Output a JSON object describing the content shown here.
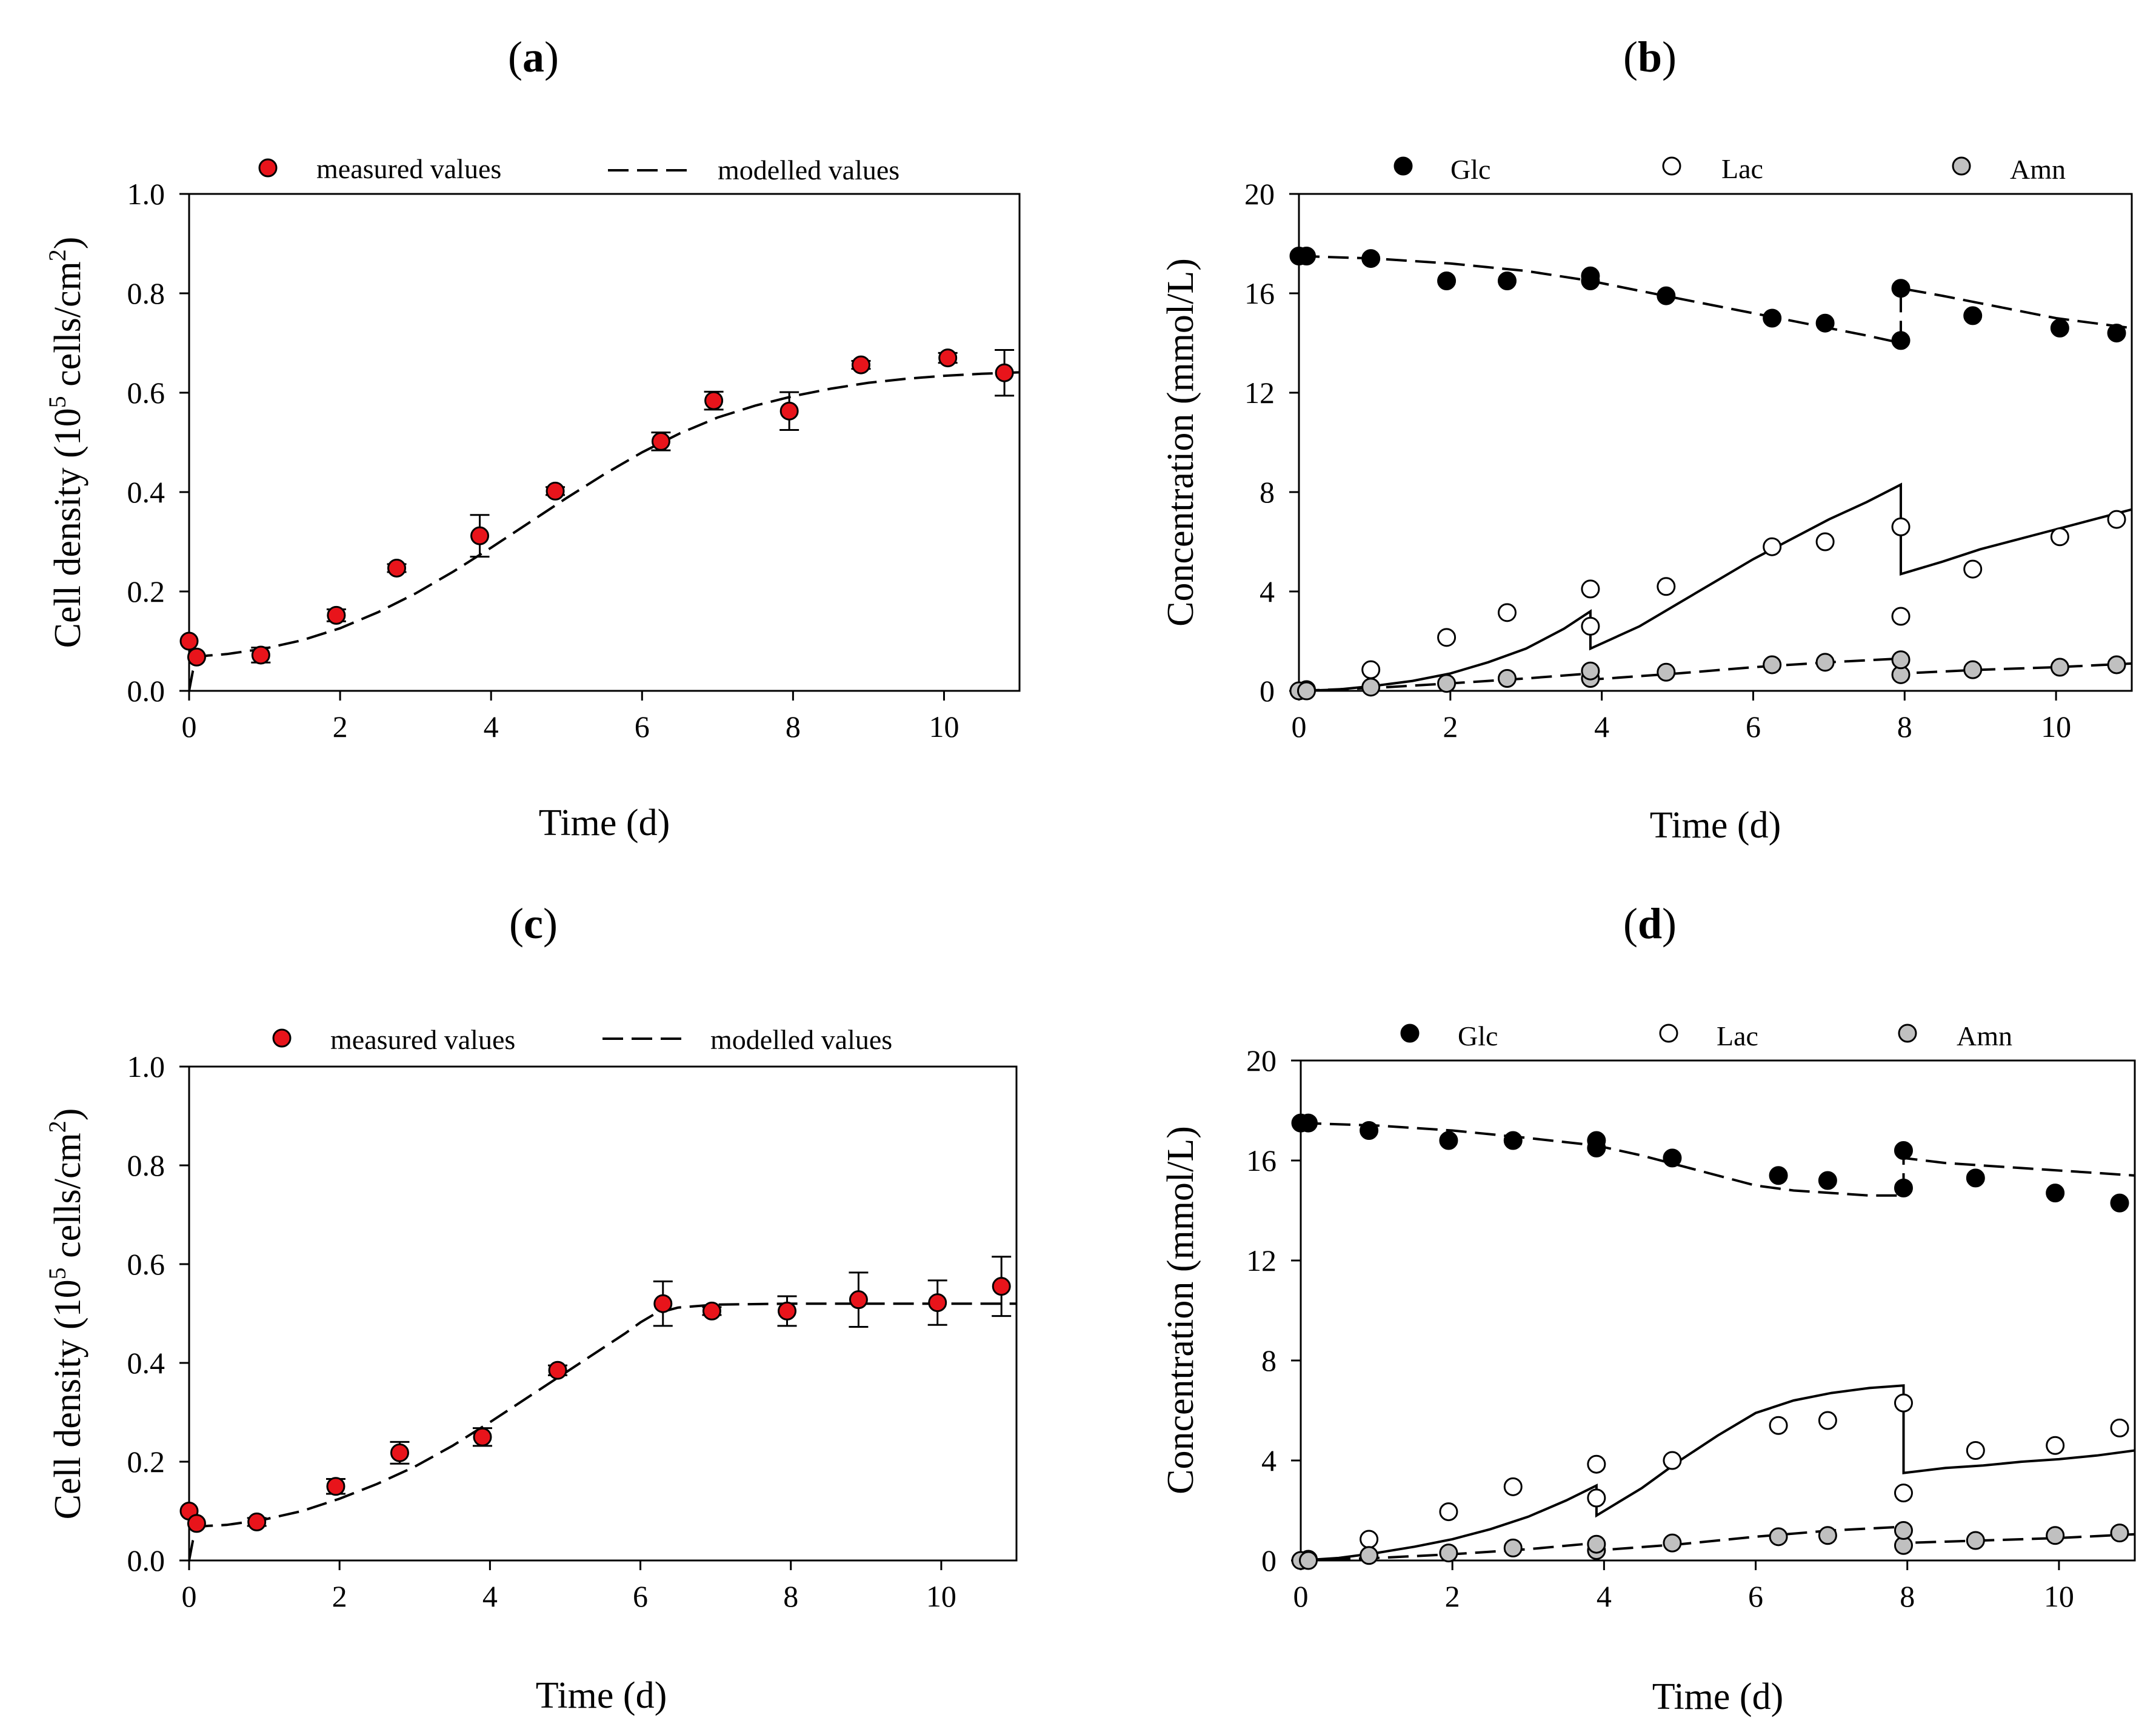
{
  "figure": {
    "panels": [
      {
        "id": "a",
        "label_open": "(",
        "label_letter": "a",
        "label_close": ")"
      },
      {
        "id": "b",
        "label_open": "(",
        "label_letter": "b",
        "label_close": ")"
      },
      {
        "id": "c",
        "label_open": "(",
        "label_letter": "c",
        "label_close": ")"
      },
      {
        "id": "d",
        "label_open": "(",
        "label_letter": "d",
        "label_close": ")"
      }
    ]
  },
  "chart_data": [
    {
      "id": "a",
      "type": "scatter",
      "xlabel": "Time (d)",
      "ylabel_prefix": "Cell density (10",
      "ylabel_sup1": "5",
      "ylabel_mid": " cells/cm",
      "ylabel_sup2": "2",
      "ylabel_suffix": ")",
      "xlim": [
        0,
        11
      ],
      "ylim": [
        0,
        1.0
      ],
      "xticks": [
        "0",
        "2",
        "4",
        "6",
        "8",
        "10"
      ],
      "yticks": [
        "0.0",
        "0.2",
        "0.4",
        "0.6",
        "0.8",
        "1.0"
      ],
      "legend": {
        "markers": [
          {
            "name": "measured values",
            "style": "red-dot"
          },
          {
            "name": "modelled values",
            "style": "dash"
          }
        ]
      },
      "colors": {
        "measured": "#e8141b"
      },
      "series": [
        {
          "name": "measured values",
          "kind": "markers",
          "style": "red",
          "x": [
            0.0,
            0.1,
            0.95,
            1.95,
            2.75,
            3.85,
            4.85,
            6.25,
            6.95,
            7.95,
            8.9,
            10.05,
            10.8
          ],
          "y": [
            0.1,
            0.068,
            0.072,
            0.152,
            0.247,
            0.312,
            0.402,
            0.502,
            0.584,
            0.563,
            0.656,
            0.67,
            0.64
          ],
          "err": [
            0,
            0,
            0.015,
            0.012,
            0.008,
            0.042,
            0.008,
            0.018,
            0.018,
            0.038,
            0.008,
            0.01,
            0.046
          ]
        },
        {
          "name": "modelled values",
          "kind": "line",
          "dash": true,
          "x": [
            0.0,
            0.05,
            0.12,
            0.25,
            0.5,
            1,
            1.5,
            2,
            2.5,
            3,
            3.5,
            4,
            4.5,
            5,
            5.5,
            6,
            6.5,
            7,
            7.5,
            8,
            8.5,
            9,
            9.5,
            10,
            10.5,
            11
          ],
          "y": [
            0.0,
            0.04,
            0.068,
            0.071,
            0.074,
            0.085,
            0.102,
            0.126,
            0.158,
            0.196,
            0.24,
            0.288,
            0.338,
            0.388,
            0.436,
            0.48,
            0.518,
            0.55,
            0.574,
            0.593,
            0.608,
            0.62,
            0.628,
            0.634,
            0.638,
            0.641
          ]
        }
      ]
    },
    {
      "id": "b",
      "type": "scatter",
      "xlabel": "Time (d)",
      "ylabel": "Concentration (mmol/L)",
      "xlim": [
        0,
        11
      ],
      "ylim": [
        0,
        20
      ],
      "xticks": [
        "0",
        "2",
        "4",
        "6",
        "8",
        "10"
      ],
      "yticks": [
        "0",
        "4",
        "8",
        "12",
        "16",
        "20"
      ],
      "legend": {
        "markers": [
          {
            "name": "Glc",
            "style": "black"
          },
          {
            "name": "Lac",
            "style": "white"
          },
          {
            "name": "Amn",
            "style": "gray"
          }
        ]
      },
      "series": [
        {
          "name": "Glc",
          "kind": "markers",
          "style": "black",
          "x": [
            0.0,
            0.1,
            0.95,
            1.95,
            2.75,
            3.85,
            3.85,
            4.85,
            6.25,
            6.95,
            7.95,
            7.95,
            8.9,
            10.05,
            10.8
          ],
          "y": [
            17.5,
            17.5,
            17.4,
            16.5,
            16.5,
            16.7,
            16.5,
            15.9,
            15.0,
            14.8,
            14.1,
            16.2,
            15.1,
            14.6,
            14.4
          ]
        },
        {
          "name": "Lac",
          "kind": "markers",
          "style": "white",
          "x": [
            0.1,
            0.95,
            1.95,
            2.75,
            3.85,
            3.85,
            4.85,
            6.25,
            6.95,
            7.95,
            7.95,
            8.9,
            10.05,
            10.8
          ],
          "y": [
            0.05,
            0.85,
            2.15,
            3.15,
            2.6,
            4.1,
            4.2,
            5.8,
            6.0,
            6.6,
            3.0,
            4.9,
            6.2,
            6.9
          ]
        },
        {
          "name": "Amn",
          "kind": "markers",
          "style": "gray",
          "x": [
            0.0,
            0.1,
            0.95,
            1.95,
            2.75,
            3.85,
            3.85,
            4.85,
            6.25,
            6.95,
            7.95,
            7.95,
            8.9,
            10.05,
            10.8
          ],
          "y": [
            0.0,
            0.0,
            0.15,
            0.3,
            0.5,
            0.5,
            0.8,
            0.75,
            1.05,
            1.15,
            0.65,
            1.25,
            0.85,
            0.95,
            1.05
          ]
        },
        {
          "name": "Glc model",
          "kind": "line",
          "dash": true,
          "x": [
            0,
            1,
            2,
            3,
            3.85,
            4.5,
            5,
            5.5,
            6,
            6.5,
            7,
            7.5,
            7.95,
            7.95,
            8.5,
            9,
            9.5,
            10,
            10.5,
            11
          ],
          "y": [
            17.5,
            17.4,
            17.2,
            16.9,
            16.5,
            16.1,
            15.8,
            15.5,
            15.2,
            14.9,
            14.6,
            14.3,
            14.0,
            16.2,
            15.9,
            15.6,
            15.3,
            15.0,
            14.8,
            14.6
          ]
        },
        {
          "name": "Lac model",
          "kind": "line",
          "dash": false,
          "x": [
            0,
            0.5,
            1,
            1.5,
            2,
            2.5,
            3,
            3.5,
            3.85,
            3.85,
            4.5,
            5,
            5.5,
            6,
            6.5,
            7,
            7.5,
            7.95,
            7.95,
            8.5,
            9,
            9.5,
            10,
            10.5,
            11
          ],
          "y": [
            0.0,
            0.05,
            0.2,
            0.4,
            0.7,
            1.15,
            1.7,
            2.5,
            3.2,
            1.7,
            2.6,
            3.5,
            4.4,
            5.3,
            6.1,
            6.9,
            7.6,
            8.3,
            4.7,
            5.2,
            5.7,
            6.1,
            6.5,
            6.9,
            7.3
          ]
        },
        {
          "name": "Amn model",
          "kind": "line",
          "dash": true,
          "x": [
            0,
            1,
            2,
            3,
            3.85,
            3.85,
            5,
            6,
            7,
            7.95,
            7.95,
            9,
            10,
            11
          ],
          "y": [
            0.0,
            0.12,
            0.3,
            0.5,
            0.7,
            0.45,
            0.7,
            0.95,
            1.15,
            1.3,
            0.7,
            0.85,
            0.95,
            1.1
          ]
        }
      ]
    },
    {
      "id": "c",
      "type": "scatter",
      "xlabel": "Time (d)",
      "ylabel_prefix": "Cell density (10",
      "ylabel_sup1": "5",
      "ylabel_mid": " cells/cm",
      "ylabel_sup2": "2",
      "ylabel_suffix": ")",
      "xlim": [
        0,
        11
      ],
      "ylim": [
        0,
        1.0
      ],
      "xticks": [
        "0",
        "2",
        "4",
        "6",
        "8",
        "10"
      ],
      "yticks": [
        "0.0",
        "0.2",
        "0.4",
        "0.6",
        "0.8",
        "1.0"
      ],
      "legend": {
        "markers": [
          {
            "name": "measured values",
            "style": "red-dot"
          },
          {
            "name": "modelled values",
            "style": "dash"
          }
        ]
      },
      "colors": {
        "measured": "#e8141b"
      },
      "series": [
        {
          "name": "measured values",
          "kind": "markers",
          "style": "red",
          "x": [
            0.0,
            0.1,
            0.9,
            1.95,
            2.8,
            3.9,
            4.9,
            6.3,
            6.95,
            7.95,
            8.9,
            9.95,
            10.8
          ],
          "y": [
            0.1,
            0.075,
            0.078,
            0.15,
            0.218,
            0.25,
            0.385,
            0.52,
            0.505,
            0.505,
            0.528,
            0.522,
            0.555
          ],
          "err": [
            0,
            0,
            0.008,
            0.015,
            0.022,
            0.018,
            0.01,
            0.045,
            0.008,
            0.03,
            0.055,
            0.045,
            0.06
          ]
        },
        {
          "name": "modelled values",
          "kind": "line",
          "dash": true,
          "x": [
            0.0,
            0.05,
            0.12,
            0.25,
            0.5,
            1,
            1.5,
            2,
            2.5,
            3,
            3.5,
            4,
            4.5,
            5,
            5.5,
            5.8,
            6,
            6.2,
            6.5,
            7,
            8,
            9,
            10,
            11
          ],
          "y": [
            0.0,
            0.04,
            0.068,
            0.07,
            0.072,
            0.083,
            0.1,
            0.125,
            0.155,
            0.19,
            0.232,
            0.28,
            0.33,
            0.38,
            0.43,
            0.46,
            0.482,
            0.5,
            0.512,
            0.518,
            0.52,
            0.52,
            0.52,
            0.52
          ]
        }
      ]
    },
    {
      "id": "d",
      "type": "scatter",
      "xlabel": "Time (d)",
      "ylabel": "Concentration (mmol/L)",
      "xlim": [
        0,
        11
      ],
      "ylim": [
        0,
        20
      ],
      "xticks": [
        "0",
        "2",
        "4",
        "6",
        "8",
        "10"
      ],
      "yticks": [
        "0",
        "4",
        "8",
        "12",
        "16",
        "20"
      ],
      "legend": {
        "markers": [
          {
            "name": "Glc",
            "style": "black"
          },
          {
            "name": "Lac",
            "style": "white"
          },
          {
            "name": "Amn",
            "style": "gray"
          }
        ]
      },
      "series": [
        {
          "name": "Glc",
          "kind": "markers",
          "style": "black",
          "x": [
            0.0,
            0.1,
            0.9,
            1.95,
            2.8,
            3.9,
            3.9,
            4.9,
            6.3,
            6.95,
            7.95,
            7.95,
            8.9,
            9.95,
            10.8
          ],
          "y": [
            17.5,
            17.5,
            17.2,
            16.8,
            16.8,
            16.8,
            16.5,
            16.1,
            15.4,
            15.2,
            14.9,
            16.4,
            15.3,
            14.7,
            14.3
          ]
        },
        {
          "name": "Lac",
          "kind": "markers",
          "style": "white",
          "x": [
            0.1,
            0.9,
            1.95,
            2.8,
            3.9,
            3.9,
            4.9,
            6.3,
            6.95,
            7.95,
            7.95,
            8.9,
            9.95,
            10.8
          ],
          "y": [
            0.05,
            0.85,
            1.95,
            2.95,
            3.85,
            2.5,
            4.0,
            5.4,
            5.6,
            6.3,
            2.7,
            4.4,
            4.6,
            5.3
          ]
        },
        {
          "name": "Amn",
          "kind": "markers",
          "style": "gray",
          "x": [
            0.0,
            0.1,
            0.9,
            1.95,
            2.8,
            3.9,
            3.9,
            4.9,
            6.3,
            6.95,
            7.95,
            7.95,
            8.9,
            9.95,
            10.8
          ],
          "y": [
            0.0,
            0.0,
            0.2,
            0.3,
            0.5,
            0.4,
            0.65,
            0.7,
            0.95,
            1.0,
            0.6,
            1.2,
            0.8,
            1.0,
            1.1
          ]
        },
        {
          "name": "Glc model",
          "kind": "line",
          "dash": true,
          "x": [
            0,
            1,
            2,
            3,
            3.9,
            4.5,
            5,
            5.5,
            6,
            6.5,
            7,
            7.5,
            7.95,
            7.95,
            8.5,
            9,
            9.5,
            10,
            10.5,
            11
          ],
          "y": [
            17.5,
            17.4,
            17.2,
            16.9,
            16.6,
            16.2,
            15.8,
            15.4,
            15.0,
            14.8,
            14.7,
            14.6,
            14.6,
            16.1,
            15.9,
            15.8,
            15.7,
            15.6,
            15.5,
            15.4
          ]
        },
        {
          "name": "Lac model",
          "kind": "line",
          "dash": false,
          "x": [
            0,
            0.5,
            1,
            1.5,
            2,
            2.5,
            3,
            3.5,
            3.9,
            3.9,
            4.5,
            5,
            5.5,
            6,
            6.5,
            7,
            7.5,
            7.95,
            7.95,
            8.5,
            9,
            9.5,
            10,
            10.5,
            11
          ],
          "y": [
            0.0,
            0.1,
            0.3,
            0.55,
            0.85,
            1.25,
            1.75,
            2.4,
            3.0,
            1.8,
            2.9,
            4.0,
            5.0,
            5.9,
            6.4,
            6.7,
            6.9,
            7.0,
            3.5,
            3.7,
            3.8,
            3.95,
            4.05,
            4.2,
            4.4
          ]
        },
        {
          "name": "Amn model",
          "kind": "line",
          "dash": true,
          "x": [
            0,
            1,
            2,
            3,
            3.9,
            3.9,
            5,
            6,
            7,
            7.95,
            7.95,
            9,
            10,
            11
          ],
          "y": [
            0.0,
            0.1,
            0.25,
            0.45,
            0.7,
            0.4,
            0.65,
            0.95,
            1.2,
            1.35,
            0.7,
            0.8,
            0.9,
            1.05
          ]
        }
      ]
    }
  ]
}
